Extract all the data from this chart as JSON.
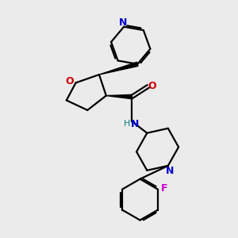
{
  "bg_color": "#ebebeb",
  "bond_color": "#000000",
  "N_color": "#0000cc",
  "O_color": "#cc0000",
  "F_color": "#cc00cc",
  "NH_color": "#008080",
  "line_width": 1.6,
  "fig_size": [
    3.0,
    3.0
  ],
  "dpi": 100,
  "xlim": [
    0,
    10
  ],
  "ylim": [
    0,
    10
  ]
}
